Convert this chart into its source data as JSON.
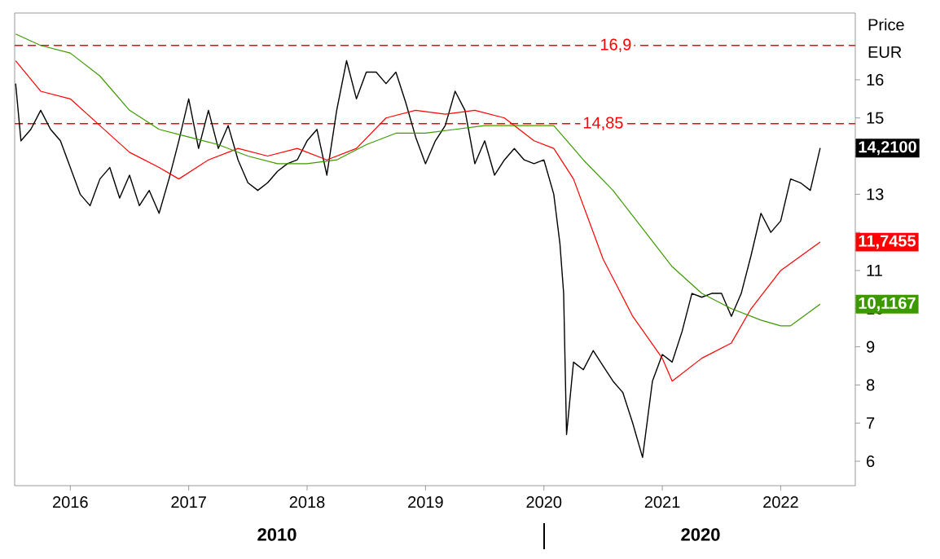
{
  "chart_data": {
    "type": "line",
    "ylabel": "Price",
    "xlim": [
      "2015-07-12",
      "2022-08-18"
    ],
    "ylim": [
      5.36,
      17.75
    ],
    "xticks": [
      "2016",
      "2017",
      "2018",
      "2019",
      "2020",
      "2021",
      "2022"
    ],
    "yticks": [
      6,
      7,
      8,
      9,
      10,
      11,
      {
        "value": 12,
        "label": null
      },
      13,
      {
        "value": 14,
        "label": null
      },
      15,
      16
    ],
    "grid": false,
    "marker": "none",
    "series": [
      {
        "color": "#000000",
        "x": [
          "2015-07-15",
          "2015-08",
          "2015-09",
          "2015-10",
          "2015-11",
          "2015-12",
          "2016-01",
          "2016-02",
          "2016-03",
          "2016-04",
          "2016-05",
          "2016-06",
          "2016-07",
          "2016-08",
          "2016-09",
          "2016-10",
          "2016-11",
          "2016-12",
          "2017-01",
          "2017-02",
          "2017-03",
          "2017-04",
          "2017-05",
          "2017-06",
          "2017-07",
          "2017-08",
          "2017-09",
          "2017-10",
          "2017-11",
          "2017-12",
          "2018-01",
          "2018-02",
          "2018-03",
          "2018-04",
          "2018-05",
          "2018-06",
          "2018-07",
          "2018-08",
          "2018-09",
          "2018-10",
          "2018-11",
          "2018-12",
          "2019-01",
          "2019-02",
          "2019-03",
          "2019-04",
          "2019-05",
          "2019-06",
          "2019-07",
          "2019-08",
          "2019-09",
          "2019-10",
          "2019-11",
          "2019-12",
          "2020-01",
          "2020-02",
          "2020-02-20",
          "2020-03-01",
          "2020-03-10",
          "2020-04",
          "2020-05",
          "2020-06",
          "2020-07",
          "2020-08",
          "2020-09",
          "2020-10",
          "2020-11",
          "2020-12",
          "2021-01",
          "2021-02",
          "2021-03",
          "2021-04",
          "2021-05",
          "2021-06",
          "2021-07",
          "2021-08",
          "2021-09",
          "2021-10",
          "2021-11",
          "2021-12",
          "2022-01",
          "2022-02",
          "2022-03",
          "2022-04",
          "2022-05"
        ],
        "values": [
          15.9,
          14.4,
          14.7,
          15.2,
          14.7,
          14.4,
          13.7,
          13.0,
          12.7,
          13.4,
          13.7,
          12.9,
          13.5,
          12.7,
          13.1,
          12.5,
          13.4,
          14.4,
          15.5,
          14.2,
          15.2,
          14.2,
          14.8,
          13.9,
          13.3,
          13.1,
          13.3,
          13.6,
          13.8,
          13.9,
          14.4,
          14.7,
          13.5,
          15.2,
          16.5,
          15.5,
          16.2,
          16.2,
          15.9,
          16.2,
          15.4,
          14.5,
          13.8,
          14.4,
          14.8,
          15.7,
          15.2,
          13.8,
          14.4,
          13.5,
          13.9,
          14.2,
          13.9,
          13.8,
          13.9,
          13.0,
          11.7,
          10.4,
          6.7,
          8.6,
          8.4,
          8.9,
          8.5,
          8.1,
          7.8,
          7.0,
          6.1,
          8.1,
          8.8,
          8.6,
          9.4,
          10.4,
          10.3,
          10.4,
          10.4,
          9.8,
          10.4,
          11.4,
          12.5,
          12.0,
          12.3,
          13.4,
          13.3,
          13.1,
          14.21
        ]
      },
      {
        "color": "#ff0000",
        "x": [
          "2015-07-15",
          "2015-10",
          "2016-01",
          "2016-04",
          "2016-07",
          "2016-10",
          "2016-12",
          "2017-03",
          "2017-06",
          "2017-09",
          "2017-12",
          "2018-03",
          "2018-06",
          "2018-09",
          "2018-12",
          "2019-03",
          "2019-06",
          "2019-09",
          "2019-12",
          "2020-02",
          "2020-04",
          "2020-07",
          "2020-10",
          "2021-01",
          "2021-02",
          "2021-05",
          "2021-08",
          "2021-10",
          "2022-01",
          "2022-05"
        ],
        "values": [
          16.5,
          15.7,
          15.5,
          14.8,
          14.1,
          13.7,
          13.4,
          13.9,
          14.2,
          14.0,
          14.2,
          13.9,
          14.2,
          15.0,
          15.2,
          15.1,
          15.2,
          15.0,
          14.4,
          14.2,
          13.4,
          11.3,
          9.8,
          8.7,
          8.1,
          8.7,
          9.1,
          10.0,
          11.0,
          11.7455
        ]
      },
      {
        "color": "#3c9a00",
        "x": [
          "2015-07-15",
          "2015-10",
          "2016-01",
          "2016-04",
          "2016-07",
          "2016-10",
          "2017-01",
          "2017-04",
          "2017-07",
          "2017-10",
          "2018-01",
          "2018-04",
          "2018-07",
          "2018-10",
          "2019-01",
          "2019-04",
          "2019-07",
          "2020-01",
          "2020-02",
          "2020-05",
          "2020-08",
          "2020-11",
          "2021-02",
          "2021-05",
          "2021-08",
          "2021-11",
          "2022-01",
          "2022-02",
          "2022-05"
        ],
        "values": [
          17.2,
          16.9,
          16.7,
          16.1,
          15.2,
          14.7,
          14.5,
          14.3,
          14.0,
          13.8,
          13.8,
          13.9,
          14.3,
          14.6,
          14.6,
          14.7,
          14.8,
          14.8,
          14.8,
          13.9,
          13.1,
          12.1,
          11.1,
          10.4,
          10.0,
          9.7,
          9.55,
          9.55,
          10.1167
        ]
      }
    ],
    "ref_lines": [
      {
        "axis": "y",
        "value": 16.9,
        "label": "16,9",
        "color": "#ff0000",
        "line_style": "dashed"
      },
      {
        "axis": "y",
        "value": 14.85,
        "label": "14,85",
        "color": "#ff0000",
        "line_style": "dashed"
      }
    ],
    "annotations": [
      "EUR",
      "2010",
      "2020",
      {
        "text": "14,2100",
        "x": "2022-05",
        "y": 14.21
      },
      {
        "text": "11,7455",
        "x": "2022-05",
        "y": 11.7455
      },
      {
        "text": "10,1167",
        "x": "2022-05",
        "y": 10.1167
      }
    ]
  }
}
